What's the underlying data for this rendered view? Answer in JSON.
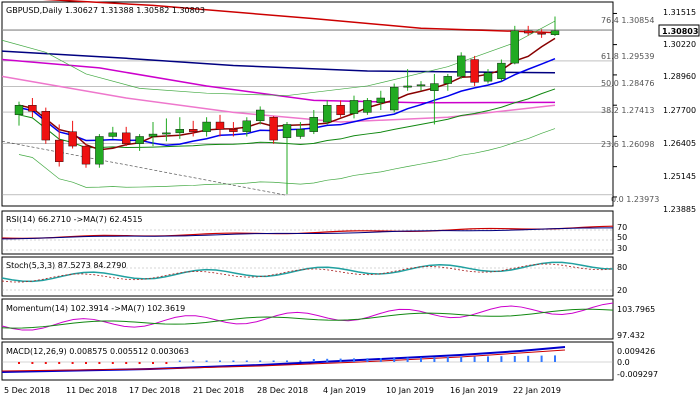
{
  "header": {
    "symbol": "GBPUSD",
    "timeframe": "Daily",
    "ohlc": "1.30627 1.31388 1.30582 1.30803"
  },
  "price_axis": {
    "ticks": [
      "1.31515",
      "1.30220",
      "1.28960",
      "1.27700",
      "1.26405",
      "1.25145",
      "1.23885"
    ],
    "current_price": "1.30803"
  },
  "fib_levels": [
    {
      "label": "76.4 1.30854",
      "value": 1.30854
    },
    {
      "label": "61.8 1.29539",
      "value": 1.29539
    },
    {
      "label": "50.0 1.28476",
      "value": 1.28476
    },
    {
      "label": "38.2 1.27413",
      "value": 1.27413
    },
    {
      "label": "23.6 1.26098",
      "value": 1.26098
    },
    {
      "label": "0.0 1.23973",
      "value": 1.23973
    }
  ],
  "indicators": {
    "rsi": {
      "label": "RSI(14) 66.2710 ->MA(7) 62.4515",
      "ticks": [
        "70",
        "50",
        "30"
      ]
    },
    "stoch": {
      "label": "Stoch(5,3,3) 87.5273 84.2790",
      "ticks": [
        "80",
        "20"
      ]
    },
    "momentum": {
      "label": "Momentum(14) 102.3914 ->MA(7) 102.3619",
      "ticks": [
        "103.7965",
        "97.432"
      ]
    },
    "macd": {
      "label": "MACD(12,26,9) 0.008575 0.005512 0.003063",
      "ticks": [
        "0.009426",
        "0.0",
        "-0.009297"
      ]
    }
  },
  "date_axis": [
    "5 Dec 2018",
    "11 Dec 2018",
    "17 Dec 2018",
    "21 Dec 2018",
    "28 Dec 2018",
    "4 Jan 2019",
    "10 Jan 2019",
    "16 Jan 2019",
    "22 Jan 2019"
  ],
  "colors": {
    "bull": "#22aa22",
    "bear": "#ee1111",
    "ma_red": "#cc0000",
    "ma_navy": "#000080",
    "ma_purple": "#cc00cc",
    "ma_blue": "#0000ee",
    "ma_maroon": "#880000",
    "ma_green": "#118811",
    "ma_pink": "#ee77cc",
    "bb": "#44aa44"
  },
  "chart_data": {
    "type": "candlestick",
    "title": "GBPUSD Daily",
    "ylim": [
      1.2355,
      1.3195
    ],
    "candles": [
      {
        "o": 1.273,
        "h": 1.2785,
        "l": 1.2685,
        "c": 1.277
      },
      {
        "o": 1.277,
        "h": 1.28,
        "l": 1.272,
        "c": 1.2745
      },
      {
        "o": 1.2745,
        "h": 1.276,
        "l": 1.261,
        "c": 1.2625
      },
      {
        "o": 1.2625,
        "h": 1.269,
        "l": 1.2515,
        "c": 1.2535
      },
      {
        "o": 1.266,
        "h": 1.2705,
        "l": 1.259,
        "c": 1.26
      },
      {
        "o": 1.26,
        "h": 1.261,
        "l": 1.251,
        "c": 1.2525
      },
      {
        "o": 1.2525,
        "h": 1.265,
        "l": 1.251,
        "c": 1.264
      },
      {
        "o": 1.264,
        "h": 1.268,
        "l": 1.263,
        "c": 1.2655
      },
      {
        "o": 1.2655,
        "h": 1.268,
        "l": 1.26,
        "c": 1.261
      },
      {
        "o": 1.261,
        "h": 1.265,
        "l": 1.258,
        "c": 1.264
      },
      {
        "o": 1.264,
        "h": 1.27,
        "l": 1.26,
        "c": 1.265
      },
      {
        "o": 1.265,
        "h": 1.2715,
        "l": 1.262,
        "c": 1.2655
      },
      {
        "o": 1.2655,
        "h": 1.272,
        "l": 1.263,
        "c": 1.267
      },
      {
        "o": 1.267,
        "h": 1.2705,
        "l": 1.264,
        "c": 1.266
      },
      {
        "o": 1.266,
        "h": 1.272,
        "l": 1.264,
        "c": 1.27
      },
      {
        "o": 1.27,
        "h": 1.273,
        "l": 1.264,
        "c": 1.267
      },
      {
        "o": 1.267,
        "h": 1.27,
        "l": 1.264,
        "c": 1.266
      },
      {
        "o": 1.266,
        "h": 1.272,
        "l": 1.264,
        "c": 1.2705
      },
      {
        "o": 1.2705,
        "h": 1.2765,
        "l": 1.269,
        "c": 1.275
      },
      {
        "o": 1.272,
        "h": 1.2725,
        "l": 1.261,
        "c": 1.2625
      },
      {
        "o": 1.2635,
        "h": 1.27,
        "l": 1.24,
        "c": 1.269
      },
      {
        "o": 1.264,
        "h": 1.27,
        "l": 1.263,
        "c": 1.267
      },
      {
        "o": 1.266,
        "h": 1.275,
        "l": 1.265,
        "c": 1.272
      },
      {
        "o": 1.27,
        "h": 1.279,
        "l": 1.269,
        "c": 1.277
      },
      {
        "o": 1.277,
        "h": 1.279,
        "l": 1.272,
        "c": 1.273
      },
      {
        "o": 1.2735,
        "h": 1.281,
        "l": 1.2715,
        "c": 1.279
      },
      {
        "o": 1.274,
        "h": 1.28,
        "l": 1.273,
        "c": 1.279
      },
      {
        "o": 1.278,
        "h": 1.283,
        "l": 1.275,
        "c": 1.28
      },
      {
        "o": 1.275,
        "h": 1.286,
        "l": 1.274,
        "c": 1.2845
      },
      {
        "o": 1.2845,
        "h": 1.292,
        "l": 1.283,
        "c": 1.285
      },
      {
        "o": 1.285,
        "h": 1.287,
        "l": 1.283,
        "c": 1.2855
      },
      {
        "o": 1.283,
        "h": 1.29,
        "l": 1.269,
        "c": 1.286
      },
      {
        "o": 1.286,
        "h": 1.29,
        "l": 1.283,
        "c": 1.289
      },
      {
        "o": 1.289,
        "h": 1.299,
        "l": 1.288,
        "c": 1.2975
      },
      {
        "o": 1.296,
        "h": 1.2975,
        "l": 1.285,
        "c": 1.2865
      },
      {
        "o": 1.287,
        "h": 1.292,
        "l": 1.286,
        "c": 1.2905
      },
      {
        "o": 1.288,
        "h": 1.296,
        "l": 1.287,
        "c": 1.2945
      },
      {
        "o": 1.2945,
        "h": 1.31,
        "l": 1.294,
        "c": 1.308
      },
      {
        "o": 1.308,
        "h": 1.31,
        "l": 1.306,
        "c": 1.307
      },
      {
        "o": 1.307,
        "h": 1.3085,
        "l": 1.305,
        "c": 1.3065
      },
      {
        "o": 1.3063,
        "h": 1.3139,
        "l": 1.3058,
        "c": 1.308
      }
    ]
  }
}
